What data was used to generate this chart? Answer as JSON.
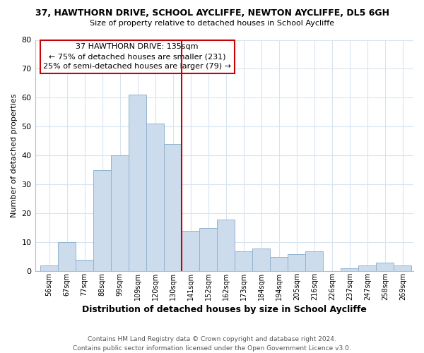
{
  "title1": "37, HAWTHORN DRIVE, SCHOOL AYCLIFFE, NEWTON AYCLIFFE, DL5 6GH",
  "title2": "Size of property relative to detached houses in School Aycliffe",
  "xlabel": "Distribution of detached houses by size in School Aycliffe",
  "ylabel": "Number of detached properties",
  "bin_labels": [
    "56sqm",
    "67sqm",
    "77sqm",
    "88sqm",
    "99sqm",
    "109sqm",
    "120sqm",
    "130sqm",
    "141sqm",
    "152sqm",
    "162sqm",
    "173sqm",
    "184sqm",
    "194sqm",
    "205sqm",
    "216sqm",
    "226sqm",
    "237sqm",
    "247sqm",
    "258sqm",
    "269sqm"
  ],
  "bar_heights": [
    2,
    10,
    4,
    35,
    40,
    61,
    51,
    44,
    14,
    15,
    18,
    7,
    8,
    5,
    6,
    7,
    0,
    1,
    2,
    3,
    2
  ],
  "bar_color": "#cddcec",
  "bar_edge_color": "#92b4d0",
  "vline_color": "#cc0000",
  "ylim": [
    0,
    80
  ],
  "yticks": [
    0,
    10,
    20,
    30,
    40,
    50,
    60,
    70,
    80
  ],
  "annotation_title": "37 HAWTHORN DRIVE: 135sqm",
  "annotation_line1": "← 75% of detached houses are smaller (231)",
  "annotation_line2": "25% of semi-detached houses are larger (79) →",
  "annotation_box_color": "#ffffff",
  "annotation_box_edge": "#cc0000",
  "footer1": "Contains HM Land Registry data © Crown copyright and database right 2024.",
  "footer2": "Contains public sector information licensed under the Open Government Licence v3.0.",
  "bg_color": "#ffffff",
  "grid_color": "#d8e4f0"
}
